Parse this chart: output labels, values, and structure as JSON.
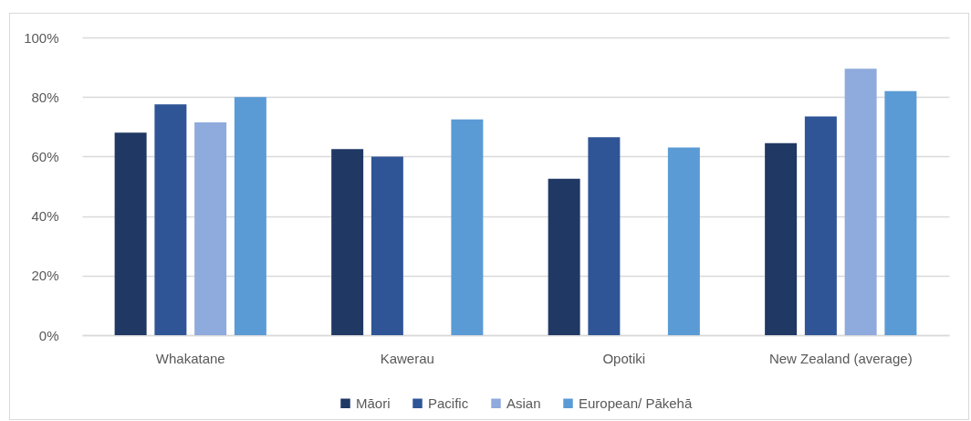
{
  "chart_data": {
    "type": "bar",
    "categories": [
      "Whakatane",
      "Kawerau",
      "Opotiki",
      "New Zealand (average)"
    ],
    "series": [
      {
        "name": "Māori",
        "color": "#203864",
        "values": [
          68,
          62.5,
          52.5,
          64.5
        ]
      },
      {
        "name": "Pacific",
        "color": "#2f5597",
        "values": [
          77.5,
          60,
          66.5,
          73.5
        ]
      },
      {
        "name": "Asian",
        "color": "#8faadc",
        "values": [
          71.5,
          null,
          null,
          89.5
        ]
      },
      {
        "name": "European/ Pākehā",
        "color": "#5b9bd5",
        "values": [
          80,
          72.5,
          63,
          82
        ]
      }
    ],
    "ylim": [
      0,
      100
    ],
    "yticks": [
      {
        "value": 0,
        "label": "0%"
      },
      {
        "value": 20,
        "label": "20%"
      },
      {
        "value": 40,
        "label": "40%"
      },
      {
        "value": 60,
        "label": "60%"
      },
      {
        "value": 80,
        "label": "80%"
      },
      {
        "value": 100,
        "label": "100%"
      }
    ],
    "grid": "y",
    "legend": "bottom"
  }
}
